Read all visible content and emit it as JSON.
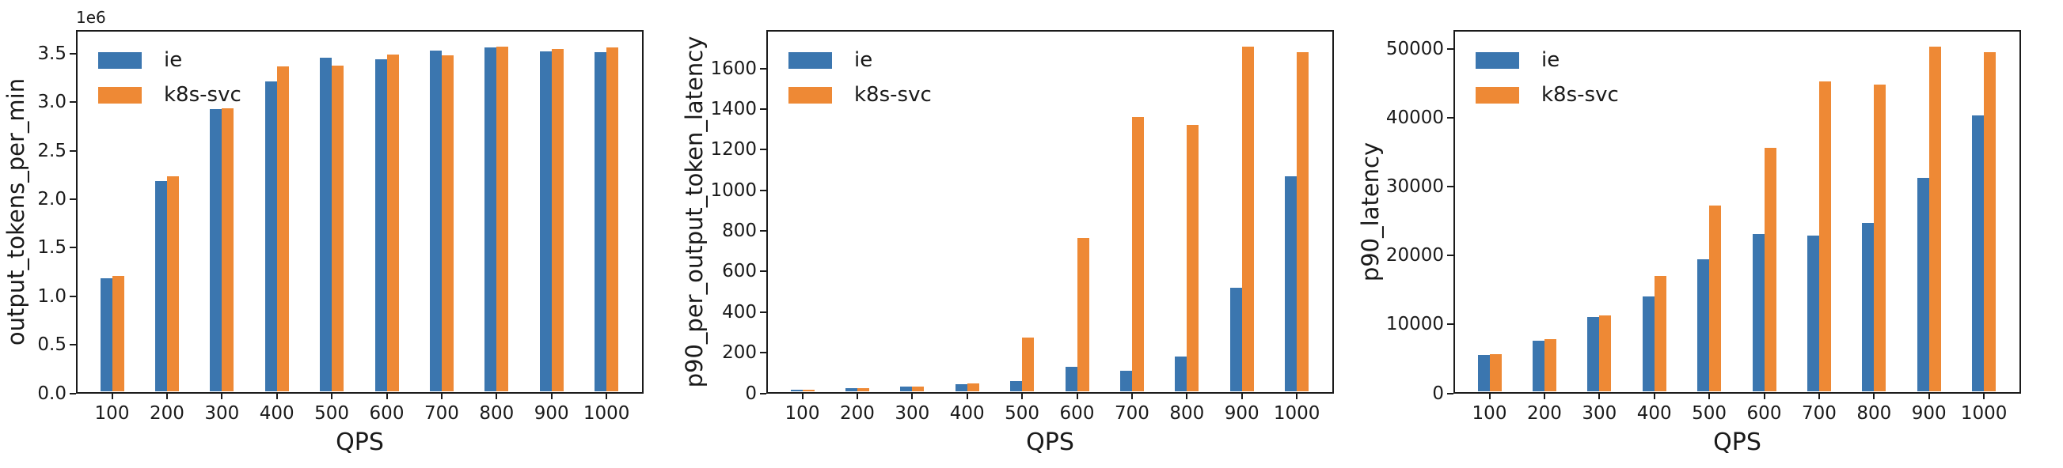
{
  "page": {
    "background": "#ffffff"
  },
  "series_colors": {
    "ie": "#3B76AF",
    "k8s-svc": "#EE8935"
  },
  "chart_data": [
    {
      "type": "bar",
      "title": "",
      "xlabel": "QPS",
      "ylabel": "output_tokens_per_min",
      "offset_text": "1e6",
      "legend_position": "upper left",
      "grid": false,
      "categories": [
        "100",
        "200",
        "300",
        "400",
        "500",
        "600",
        "700",
        "800",
        "900",
        "1000"
      ],
      "series": [
        {
          "name": "ie",
          "color": "#3B76AF",
          "values": [
            1170000,
            2170000,
            2910000,
            3200000,
            3440000,
            3430000,
            3520000,
            3550000,
            3510000,
            3500000
          ]
        },
        {
          "name": "k8s-svc",
          "color": "#EE8935",
          "values": [
            1190000,
            2220000,
            2920000,
            3350000,
            3360000,
            3480000,
            3470000,
            3560000,
            3530000,
            3550000
          ]
        }
      ],
      "ylim": [
        0,
        3745000
      ],
      "yticks": [
        {
          "v": 0,
          "label": "0.0"
        },
        {
          "v": 500000,
          "label": "0.5"
        },
        {
          "v": 1000000,
          "label": "1.0"
        },
        {
          "v": 1500000,
          "label": "1.5"
        },
        {
          "v": 2000000,
          "label": "2.0"
        },
        {
          "v": 2500000,
          "label": "2.5"
        },
        {
          "v": 3000000,
          "label": "3.0"
        },
        {
          "v": 3500000,
          "label": "3.5"
        }
      ]
    },
    {
      "type": "bar",
      "title": "",
      "xlabel": "QPS",
      "ylabel": "p90_per_output_token_latency",
      "offset_text": "",
      "legend_position": "upper left",
      "grid": false,
      "categories": [
        "100",
        "200",
        "300",
        "400",
        "500",
        "600",
        "700",
        "800",
        "900",
        "1000"
      ],
      "series": [
        {
          "name": "ie",
          "color": "#3B76AF",
          "values": [
            9,
            18,
            25,
            36,
            54,
            122,
            105,
            172,
            513,
            1060
          ]
        },
        {
          "name": "k8s-svc",
          "color": "#EE8935",
          "values": [
            10,
            19,
            27,
            41,
            268,
            758,
            1352,
            1315,
            1700,
            1672
          ]
        }
      ],
      "ylim": [
        0,
        1790
      ],
      "yticks": [
        {
          "v": 0,
          "label": "0"
        },
        {
          "v": 200,
          "label": "200"
        },
        {
          "v": 400,
          "label": "400"
        },
        {
          "v": 600,
          "label": "600"
        },
        {
          "v": 800,
          "label": "800"
        },
        {
          "v": 1000,
          "label": "1000"
        },
        {
          "v": 1200,
          "label": "1200"
        },
        {
          "v": 1400,
          "label": "1400"
        },
        {
          "v": 1600,
          "label": "1600"
        }
      ]
    },
    {
      "type": "bar",
      "title": "",
      "xlabel": "QPS",
      "ylabel": "p90_latency",
      "offset_text": "",
      "legend_position": "upper left",
      "grid": false,
      "categories": [
        "100",
        "200",
        "300",
        "400",
        "500",
        "600",
        "700",
        "800",
        "900",
        "1000"
      ],
      "series": [
        {
          "name": "ie",
          "color": "#3B76AF",
          "values": [
            5300,
            7400,
            10900,
            13900,
            19200,
            22900,
            22700,
            24500,
            31100,
            40200
          ]
        },
        {
          "name": "k8s-svc",
          "color": "#EE8935",
          "values": [
            5450,
            7600,
            11100,
            16800,
            27100,
            35400,
            45100,
            44600,
            50200,
            49300
          ]
        }
      ],
      "ylim": [
        0,
        52800
      ],
      "yticks": [
        {
          "v": 0,
          "label": "0"
        },
        {
          "v": 10000,
          "label": "10000"
        },
        {
          "v": 20000,
          "label": "20000"
        },
        {
          "v": 30000,
          "label": "30000"
        },
        {
          "v": 40000,
          "label": "40000"
        },
        {
          "v": 50000,
          "label": "50000"
        }
      ]
    }
  ]
}
